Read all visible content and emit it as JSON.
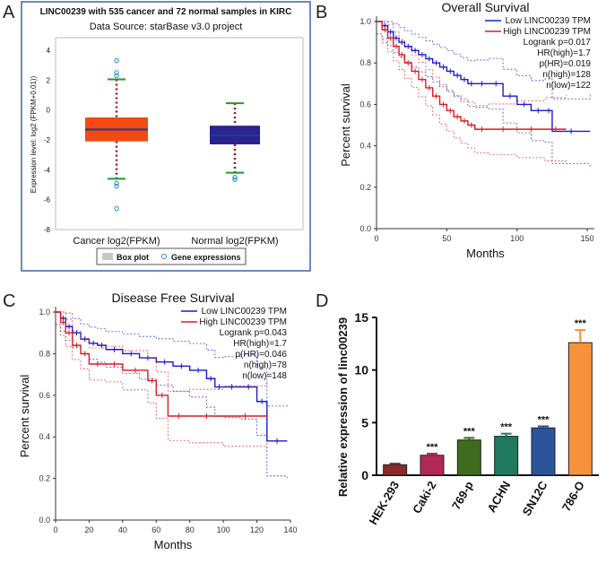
{
  "panel_labels": [
    "A",
    "B",
    "C",
    "D"
  ],
  "chart_data": [
    {
      "panel": "A",
      "type": "boxplot",
      "title": "LINC00239 with 535 cancer and 72 normal samples in KIRC",
      "subtitle": "Data Source: starBase v3.0 project",
      "ylabel": "Expression level: log2 (FPKM+0.01))",
      "ylim": [
        -8,
        4
      ],
      "yticks": [
        4,
        2,
        0,
        -2,
        -4,
        -6,
        -8
      ],
      "categories": [
        "Cancer log2(FPKM)",
        "Normal log2(FPKM)"
      ],
      "box_colors": [
        "#f24a12",
        "#2a2390"
      ],
      "boxes": [
        {
          "name": "Cancer log2(FPKM)",
          "whisker_low": -4.6,
          "q1": -2.1,
          "median": -1.3,
          "q3": -0.5,
          "whisker_high": 2.05,
          "outliers": [
            3.3,
            2.5,
            2.3,
            -4.9,
            -5.1,
            -6.6
          ]
        },
        {
          "name": "Normal log2(FPKM)",
          "whisker_low": -4.2,
          "q1": -2.3,
          "median": -1.7,
          "q3": -1.05,
          "whisker_high": 0.45,
          "outliers": [
            -4.5,
            -4.65
          ]
        }
      ],
      "legend": [
        "Box plot",
        "Gene expressions"
      ]
    },
    {
      "panel": "B",
      "type": "line",
      "subtype": "kaplan-meier",
      "title": "Overall Survival",
      "xlabel": "Months",
      "ylabel": "Percent survival",
      "xlim": [
        0,
        155
      ],
      "ylim": [
        0,
        1.0
      ],
      "xticks": [
        0,
        50,
        100,
        150
      ],
      "yticks": [
        0.0,
        0.2,
        0.4,
        0.6,
        0.8,
        1.0
      ],
      "series": [
        {
          "name": "Low LINC00239 TPM",
          "color": "#1a1acc",
          "x": [
            0,
            4,
            8,
            12,
            16,
            20,
            25,
            30,
            35,
            40,
            45,
            50,
            55,
            60,
            65,
            70,
            80,
            90,
            100,
            110,
            120,
            125,
            152
          ],
          "y": [
            1.0,
            0.98,
            0.95,
            0.92,
            0.9,
            0.88,
            0.86,
            0.84,
            0.82,
            0.8,
            0.78,
            0.76,
            0.74,
            0.72,
            0.7,
            0.7,
            0.7,
            0.64,
            0.6,
            0.57,
            0.57,
            0.47,
            0.47
          ]
        },
        {
          "name": "High LINC00239 TPM",
          "color": "#dd1c1c",
          "x": [
            0,
            4,
            8,
            12,
            16,
            20,
            25,
            30,
            35,
            40,
            45,
            50,
            55,
            60,
            65,
            70,
            80,
            100,
            120,
            135
          ],
          "y": [
            1.0,
            0.96,
            0.92,
            0.88,
            0.84,
            0.8,
            0.76,
            0.72,
            0.68,
            0.64,
            0.6,
            0.57,
            0.54,
            0.52,
            0.5,
            0.48,
            0.48,
            0.48,
            0.48,
            0.48
          ]
        }
      ],
      "annotations": [
        "Logrank p=0.017",
        "HR(high)=1.7",
        "p(HR)=0.019",
        "n(high)=128",
        "n(low)=122"
      ]
    },
    {
      "panel": "C",
      "type": "line",
      "subtype": "kaplan-meier",
      "title": "Disease Free Survival",
      "xlabel": "Months",
      "ylabel": "Percent survival",
      "xlim": [
        0,
        140
      ],
      "ylim": [
        0,
        1.0
      ],
      "xticks": [
        0,
        20,
        40,
        60,
        80,
        100,
        120,
        140
      ],
      "yticks": [
        0.0,
        0.2,
        0.4,
        0.6,
        0.8,
        1.0
      ],
      "series": [
        {
          "name": "Low LINC00239 TPM",
          "color": "#1a1acc",
          "x": [
            0,
            3,
            6,
            10,
            15,
            20,
            25,
            30,
            40,
            50,
            60,
            70,
            80,
            90,
            95,
            100,
            110,
            120,
            126,
            138
          ],
          "y": [
            1.0,
            0.97,
            0.93,
            0.9,
            0.87,
            0.85,
            0.84,
            0.82,
            0.8,
            0.78,
            0.76,
            0.74,
            0.72,
            0.68,
            0.64,
            0.64,
            0.64,
            0.57,
            0.38,
            0.38
          ]
        },
        {
          "name": "High LINC00239 TPM",
          "color": "#dd1c1c",
          "x": [
            0,
            3,
            6,
            10,
            15,
            20,
            30,
            40,
            55,
            60,
            67,
            80,
            100,
            126
          ],
          "y": [
            1.0,
            0.95,
            0.9,
            0.84,
            0.8,
            0.75,
            0.75,
            0.72,
            0.67,
            0.6,
            0.5,
            0.5,
            0.5,
            0.5
          ]
        }
      ],
      "annotations": [
        "Logrank p=0.043",
        "HR(high)=1.7",
        "p(HR)=0.046",
        "n(high)=78",
        "n(low)=148"
      ]
    },
    {
      "panel": "D",
      "type": "bar",
      "title": "",
      "xlabel": "",
      "ylabel": "Relative expression of linc00239",
      "ylim": [
        0,
        15
      ],
      "yticks": [
        0,
        5,
        10,
        15
      ],
      "categories": [
        "HEK-293",
        "Caki-2",
        "769-p",
        "ACHN",
        "SN12C",
        "786-O"
      ],
      "values": [
        1.0,
        1.9,
        3.35,
        3.7,
        4.5,
        12.6
      ],
      "errors": [
        0.1,
        0.15,
        0.2,
        0.25,
        0.15,
        1.2
      ],
      "colors": [
        "#8a2a2a",
        "#b02857",
        "#3e6b1e",
        "#1f7a5e",
        "#2a559a",
        "#f7923a"
      ],
      "significance": [
        "",
        "***",
        "***",
        "***",
        "***",
        "***"
      ]
    }
  ]
}
